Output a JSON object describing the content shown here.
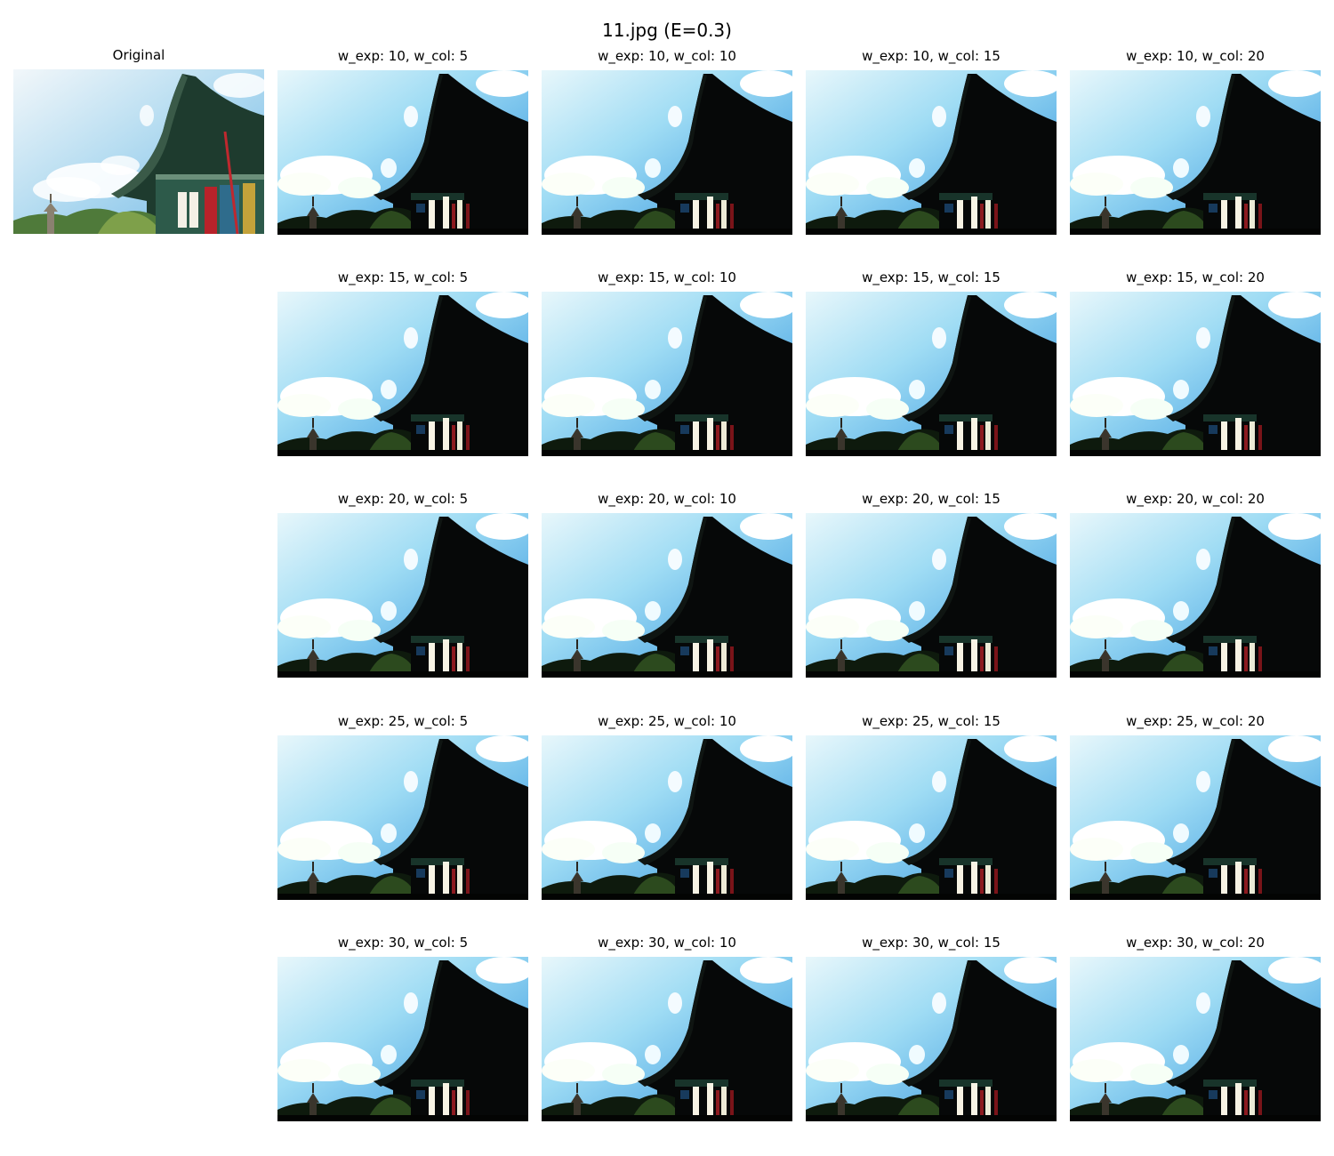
{
  "figure": {
    "title": "11.jpg (E=0.3)",
    "original_label": "Original",
    "cells": [
      [
        "w_exp: 10, w_col: 5",
        "w_exp: 10, w_col: 10",
        "w_exp: 10, w_col: 15",
        "w_exp: 10, w_col: 20"
      ],
      [
        "w_exp: 15, w_col: 5",
        "w_exp: 15, w_col: 10",
        "w_exp: 15, w_col: 15",
        "w_exp: 15, w_col: 20"
      ],
      [
        "w_exp: 20, w_col: 5",
        "w_exp: 20, w_col: 10",
        "w_exp: 20, w_col: 15",
        "w_exp: 20, w_col: 20"
      ],
      [
        "w_exp: 25, w_col: 5",
        "w_exp: 25, w_col: 10",
        "w_exp: 25, w_col: 15",
        "w_exp: 25, w_col: 20"
      ],
      [
        "w_exp: 30, w_col: 5",
        "w_exp: 30, w_col: 10",
        "w_exp: 30, w_col: 15",
        "w_exp: 30, w_col: 20"
      ]
    ]
  }
}
